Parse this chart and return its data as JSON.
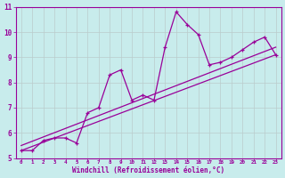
{
  "xlabel": "Windchill (Refroidissement éolien,°C)",
  "bg_color": "#c8ecec",
  "line_color": "#990099",
  "grid_color": "#aaaaaa",
  "grid_color2": "#bbcccc",
  "xlim": [
    -0.5,
    23.5
  ],
  "ylim": [
    5,
    11
  ],
  "yticks": [
    5,
    6,
    7,
    8,
    9,
    10,
    11
  ],
  "xticks": [
    0,
    1,
    2,
    3,
    4,
    5,
    6,
    7,
    8,
    9,
    10,
    11,
    12,
    13,
    14,
    15,
    16,
    17,
    18,
    19,
    20,
    21,
    22,
    23
  ],
  "series1_x": [
    0,
    1,
    2,
    3,
    4,
    5,
    6,
    7,
    8,
    9,
    10,
    11,
    12,
    13,
    14,
    15,
    16,
    17,
    18,
    19,
    20,
    21,
    22,
    23
  ],
  "series1_y": [
    5.3,
    5.3,
    5.7,
    5.8,
    5.8,
    5.6,
    6.8,
    7.0,
    8.3,
    8.5,
    7.3,
    7.5,
    7.3,
    9.4,
    10.8,
    10.3,
    9.9,
    8.7,
    8.8,
    9.0,
    9.3,
    9.6,
    9.8,
    9.1
  ],
  "trend1_x": [
    0,
    23
  ],
  "trend1_y": [
    5.3,
    9.1
  ],
  "trend2_x": [
    0,
    23
  ],
  "trend2_y": [
    5.5,
    9.4
  ]
}
